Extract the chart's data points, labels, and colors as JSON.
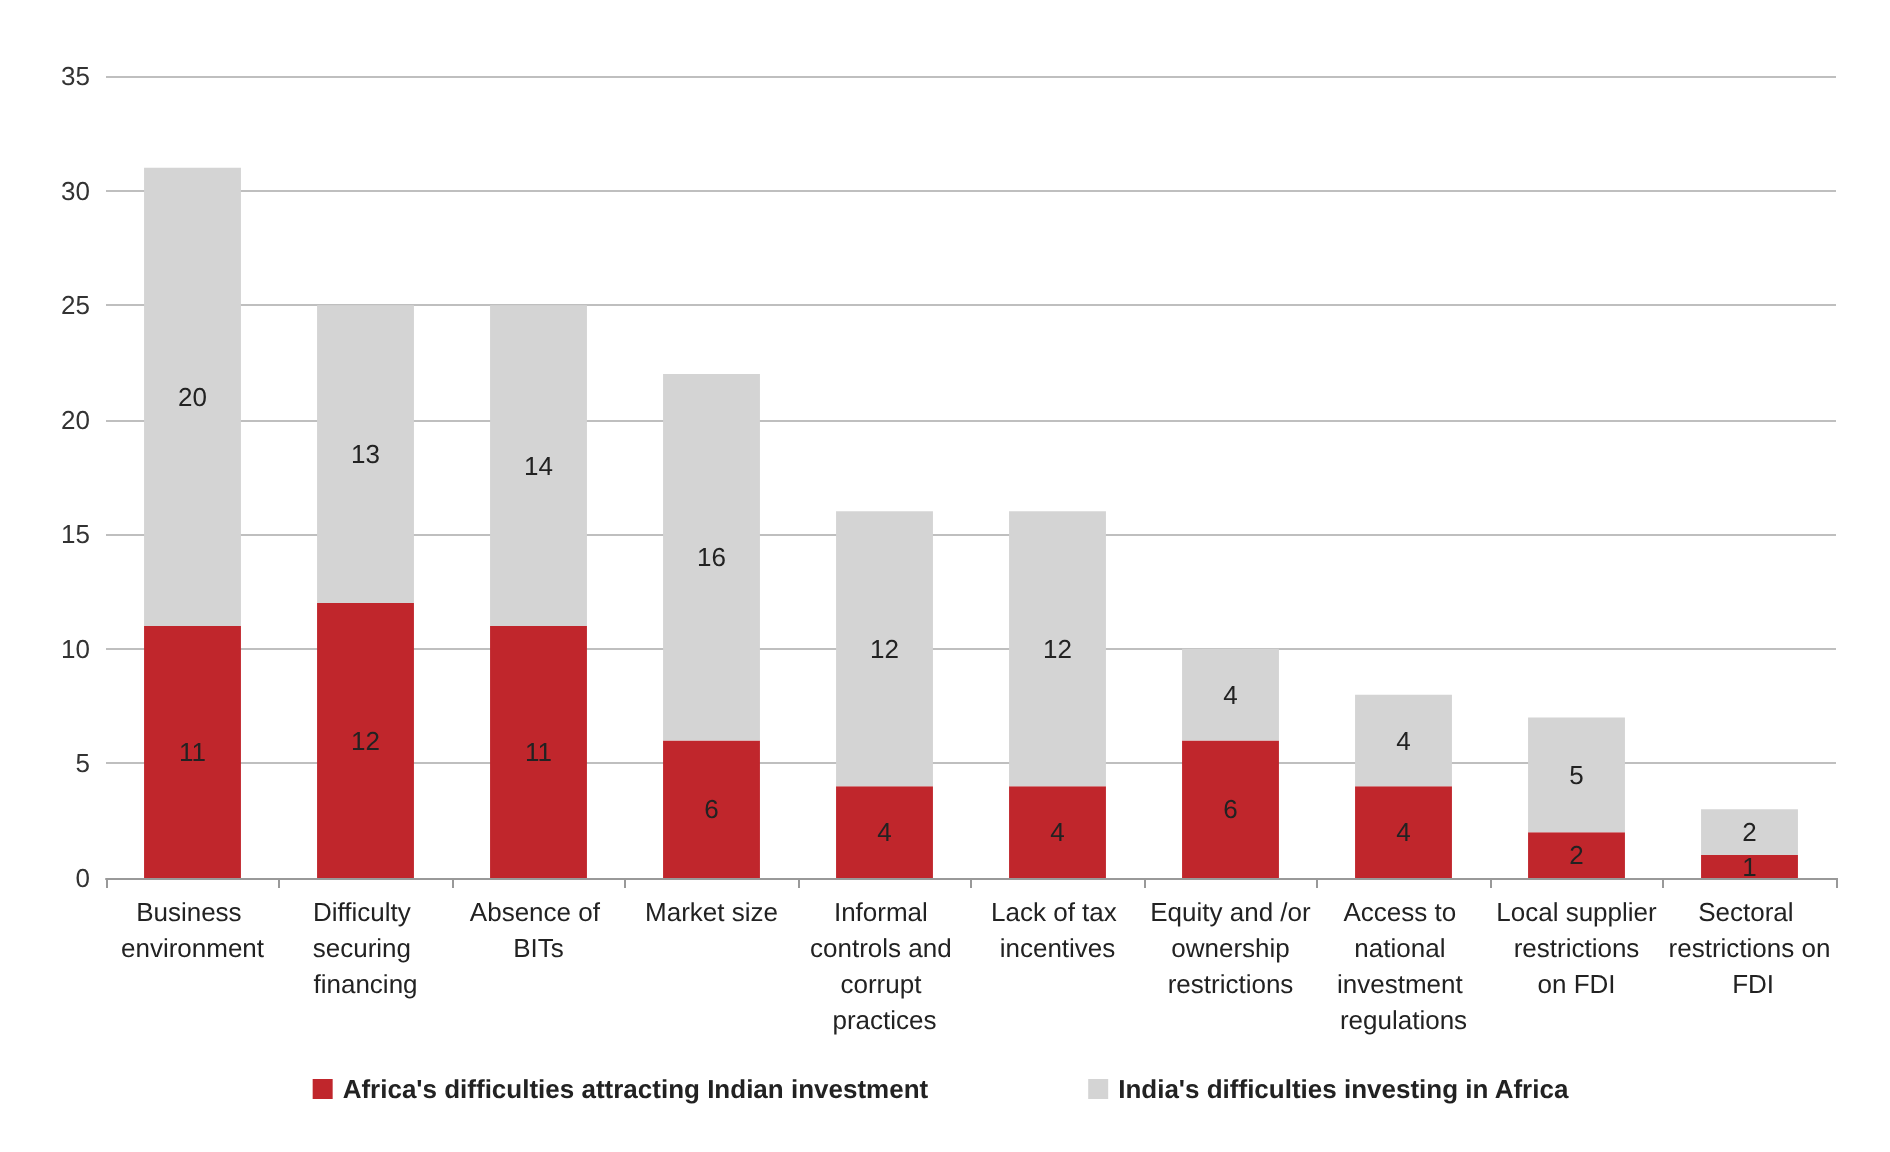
{
  "chart_data": {
    "type": "bar",
    "stacked": true,
    "categories": [
      "Business environment",
      "Difficulty securing financing",
      "Absence of BITs",
      "Market size",
      "Informal controls and corrupt practices",
      "Lack of tax incentives",
      "Equity and /or ownership restrictions",
      "Access to national investment regulations",
      "Local supplier restrictions on FDI",
      "Sectoral restrictions on FDI"
    ],
    "series": [
      {
        "name": "Africa's difficulties attracting Indian investment",
        "color": "#c0262c",
        "values": [
          11,
          12,
          11,
          6,
          4,
          4,
          6,
          4,
          2,
          1
        ]
      },
      {
        "name": "India's difficulties investing in Africa",
        "color": "#d4d4d4",
        "values": [
          20,
          13,
          14,
          16,
          12,
          12,
          4,
          4,
          5,
          2
        ]
      }
    ],
    "ylim": [
      0,
      35
    ],
    "yticks": [
      0,
      5,
      10,
      15,
      20,
      25,
      30,
      35
    ],
    "grid": "y",
    "legend": "bottom",
    "data_labels": true
  }
}
